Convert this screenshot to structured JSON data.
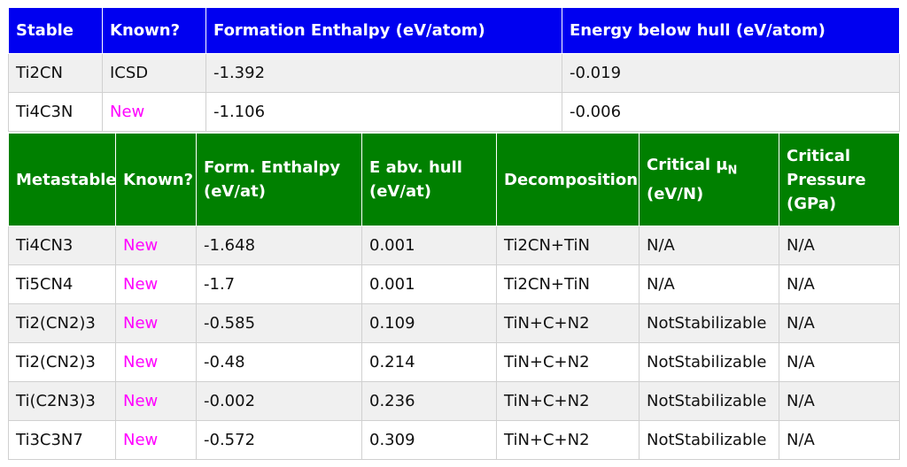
{
  "stable": {
    "headers": [
      "Stable",
      "Known?",
      "Formation Enthalpy (eV/atom)",
      "Energy below hull (eV/atom)"
    ],
    "rows": [
      {
        "compound": "Ti2CN",
        "known": "ICSD",
        "enthalpy": "-1.392",
        "hull": "-0.019"
      },
      {
        "compound": "Ti4C3N",
        "known": "New",
        "enthalpy": "-1.106",
        "hull": "-0.006"
      }
    ]
  },
  "metastable": {
    "headers": {
      "compound": "Metastable",
      "known": "Known?",
      "enthalpy_line1": "Form. Enthalpy",
      "enthalpy_line2": "(eV/at)",
      "hull_line1": "E abv. hull",
      "hull_line2": "(eV/at)",
      "decomposition": "Decomposition",
      "mu_line1": "Critical μ",
      "mu_sub": "N",
      "mu_line2": "(eV/N)",
      "pressure_line1": "Critical",
      "pressure_line2": "Pressure",
      "pressure_line3": "(GPa)"
    },
    "rows": [
      {
        "compound": "Ti4CN3",
        "known": "New",
        "enthalpy": "-1.648",
        "hull": "0.001",
        "decomposition": "Ti2CN+TiN",
        "mu": "N/A",
        "pressure": "N/A"
      },
      {
        "compound": "Ti5CN4",
        "known": "New",
        "enthalpy": "-1.7",
        "hull": "0.001",
        "decomposition": "Ti2CN+TiN",
        "mu": "N/A",
        "pressure": "N/A"
      },
      {
        "compound": "Ti2(CN2)3",
        "known": "New",
        "enthalpy": "-0.585",
        "hull": "0.109",
        "decomposition": "TiN+C+N2",
        "mu": "NotStabilizable",
        "pressure": "N/A"
      },
      {
        "compound": "Ti2(CN2)3",
        "known": "New",
        "enthalpy": "-0.48",
        "hull": "0.214",
        "decomposition": "TiN+C+N2",
        "mu": "NotStabilizable",
        "pressure": "N/A"
      },
      {
        "compound": "Ti(C2N3)3",
        "known": "New",
        "enthalpy": "-0.002",
        "hull": "0.236",
        "decomposition": "TiN+C+N2",
        "mu": "NotStabilizable",
        "pressure": "N/A"
      },
      {
        "compound": "Ti3C3N7",
        "known": "New",
        "enthalpy": "-0.572",
        "hull": "0.309",
        "decomposition": "TiN+C+N2",
        "mu": "NotStabilizable",
        "pressure": "N/A"
      }
    ]
  },
  "colors": {
    "stable_header": "#0000f0",
    "metastable_header": "#008000",
    "new_label": "#ff00ff",
    "row_alt": "#f0f0f0"
  }
}
